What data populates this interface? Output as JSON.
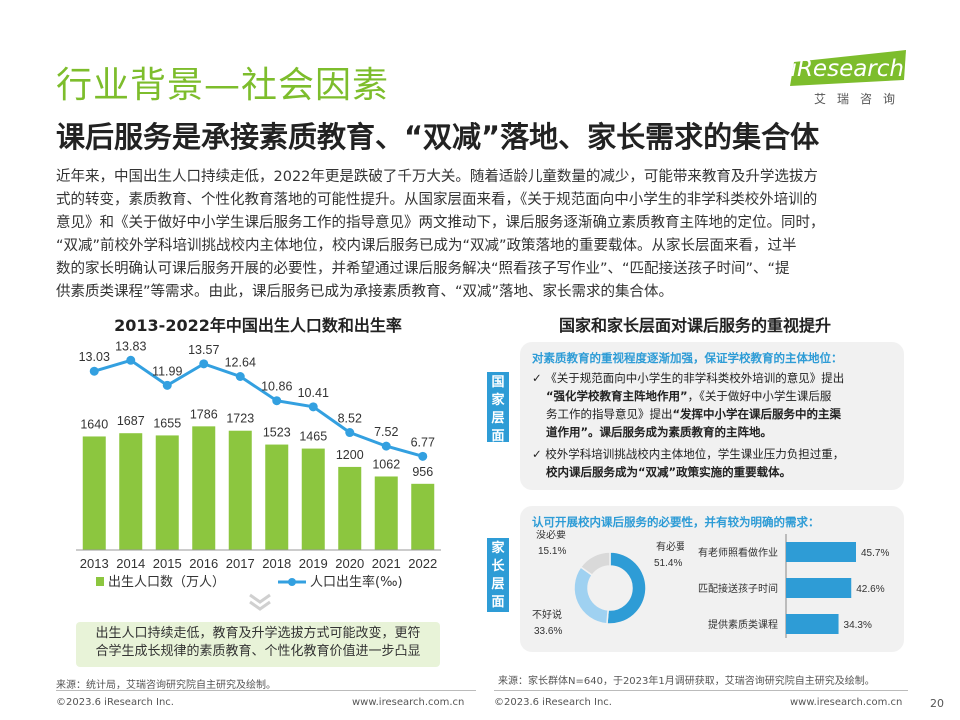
{
  "header": {
    "title": "行业背景—社会因素",
    "subtitle": "课后服务是承接素质教育、“双减”落地、家长需求的集合体",
    "logo_main": "iResearch",
    "logo_sub": "艾瑞咨询"
  },
  "paragraph": [
    "近年来，中国出生人口持续走低，2022年更是跌破了千万大关。随着适龄儿童数量的减少，可能带来教育及升学选拔方",
    "式的转变，素质教育、个性化教育落地的可能性提升。从国家层面来看，《关于规范面向中小学生的非学科类校外培训的",
    "意见》和《关于做好中小学生课后服务工作的指导意见》两文推动下，课后服务逐渐确立素质教育主阵地的定位。同时，",
    "“双减”前校外学科培训挑战校内主体地位，校内课后服务已成为“双减”政策落地的重要载体。从家长层面来看，过半",
    "数的家长明确认可课后服务开展的必要性，并希望通过课后服务解决“照看孩子写作业”、“匹配接送孩子时间”、“提",
    "供素质类课程”等需求。由此，课后服务已成为承接素质教育、“双减”落地、家长需求的集合体。"
  ],
  "left_chart": {
    "title": "2013-2022年中国出生人口数和出生率",
    "note_line1": "出生人口持续走低，教育及升学选拔方式可能改变，更符",
    "note_line2": "合学生成长规律的素质教育、个性化教育价值进一步凸显",
    "source": "来源：统计局，艾瑞咨询研究院自主研究及绘制。"
  },
  "right_panel": {
    "title": "国家和家长层面对课后服务的重视提升",
    "tag_national": "国家层面",
    "tag_parent": "家长层面",
    "national_head": "对素质教育的重视程度逐渐加强，保证学校教育的主体地位：",
    "bullet1_line1": "✓ 《关于规范面向中小学生的非学科类校外培训的意见》提出",
    "bullet1_line2_bold": "“强化学校教育主阵地作用”",
    "bullet1_line2_rest": "，《关于做好中小学生课后服",
    "bullet1_line3_a": "务工作的指导意见》提出",
    "bullet1_line3_bold": "“发挥中小学在课后服务中的主渠",
    "bullet1_line4_bold": "道作用”。课后服务成为素质教育的主阵地。",
    "bullet2_line1": "✓ 校外学科培训挑战校内主体地位，学生课业压力负担过重，",
    "bullet2_line2_bold": "校内课后服务成为“双减”政策实施的重要载体。",
    "parent_head": "认可开展校内课后服务的必要性，并有较为明确的需求：",
    "source": "来源：家长群体N=640，于2023年1月调研获取，艾瑞咨询研究院自主研究及绘制。"
  },
  "footer": {
    "left_copy": "©2023.6 iResearch Inc.",
    "left_url": "www.iresearch.com.cn",
    "right_copy": "©2023.6 iResearch Inc.",
    "right_url": "www.iresearch.com.cn",
    "page": "20"
  },
  "colors": {
    "green": "#7dbd2c",
    "blue": "#2e9cd6",
    "bar_green": "#8cc63f",
    "line_blue": "#33a0e0"
  },
  "chart_data": [
    {
      "type": "bar+line",
      "title": "2013-2022年中国出生人口数和出生率",
      "categories": [
        "2013",
        "2014",
        "2015",
        "2016",
        "2017",
        "2018",
        "2019",
        "2020",
        "2021",
        "2022"
      ],
      "series": [
        {
          "name": "出生人口数（万人）",
          "type": "bar",
          "values": [
            1640,
            1687,
            1655,
            1786,
            1723,
            1523,
            1465,
            1200,
            1062,
            956
          ]
        },
        {
          "name": "人口出生率(‰)",
          "type": "line",
          "values": [
            13.03,
            13.83,
            11.99,
            13.57,
            12.64,
            10.86,
            10.41,
            8.52,
            7.52,
            6.77
          ]
        }
      ],
      "legend_position": "bottom"
    },
    {
      "type": "pie",
      "title": "",
      "slices": [
        {
          "label": "有必要",
          "value": 51.4,
          "value_label": "51.4%"
        },
        {
          "label": "不好说",
          "value": 33.6,
          "value_label": "33.6%"
        },
        {
          "label": "没必要",
          "value": 15.1,
          "value_label": "15.1%"
        }
      ]
    },
    {
      "type": "bar",
      "orientation": "horizontal",
      "categories": [
        "有老师照看做作业",
        "匹配接送孩子时间",
        "提供素质类课程"
      ],
      "values": [
        45.7,
        42.6,
        34.3
      ],
      "value_labels": [
        "45.7%",
        "42.6%",
        "34.3%"
      ]
    }
  ]
}
